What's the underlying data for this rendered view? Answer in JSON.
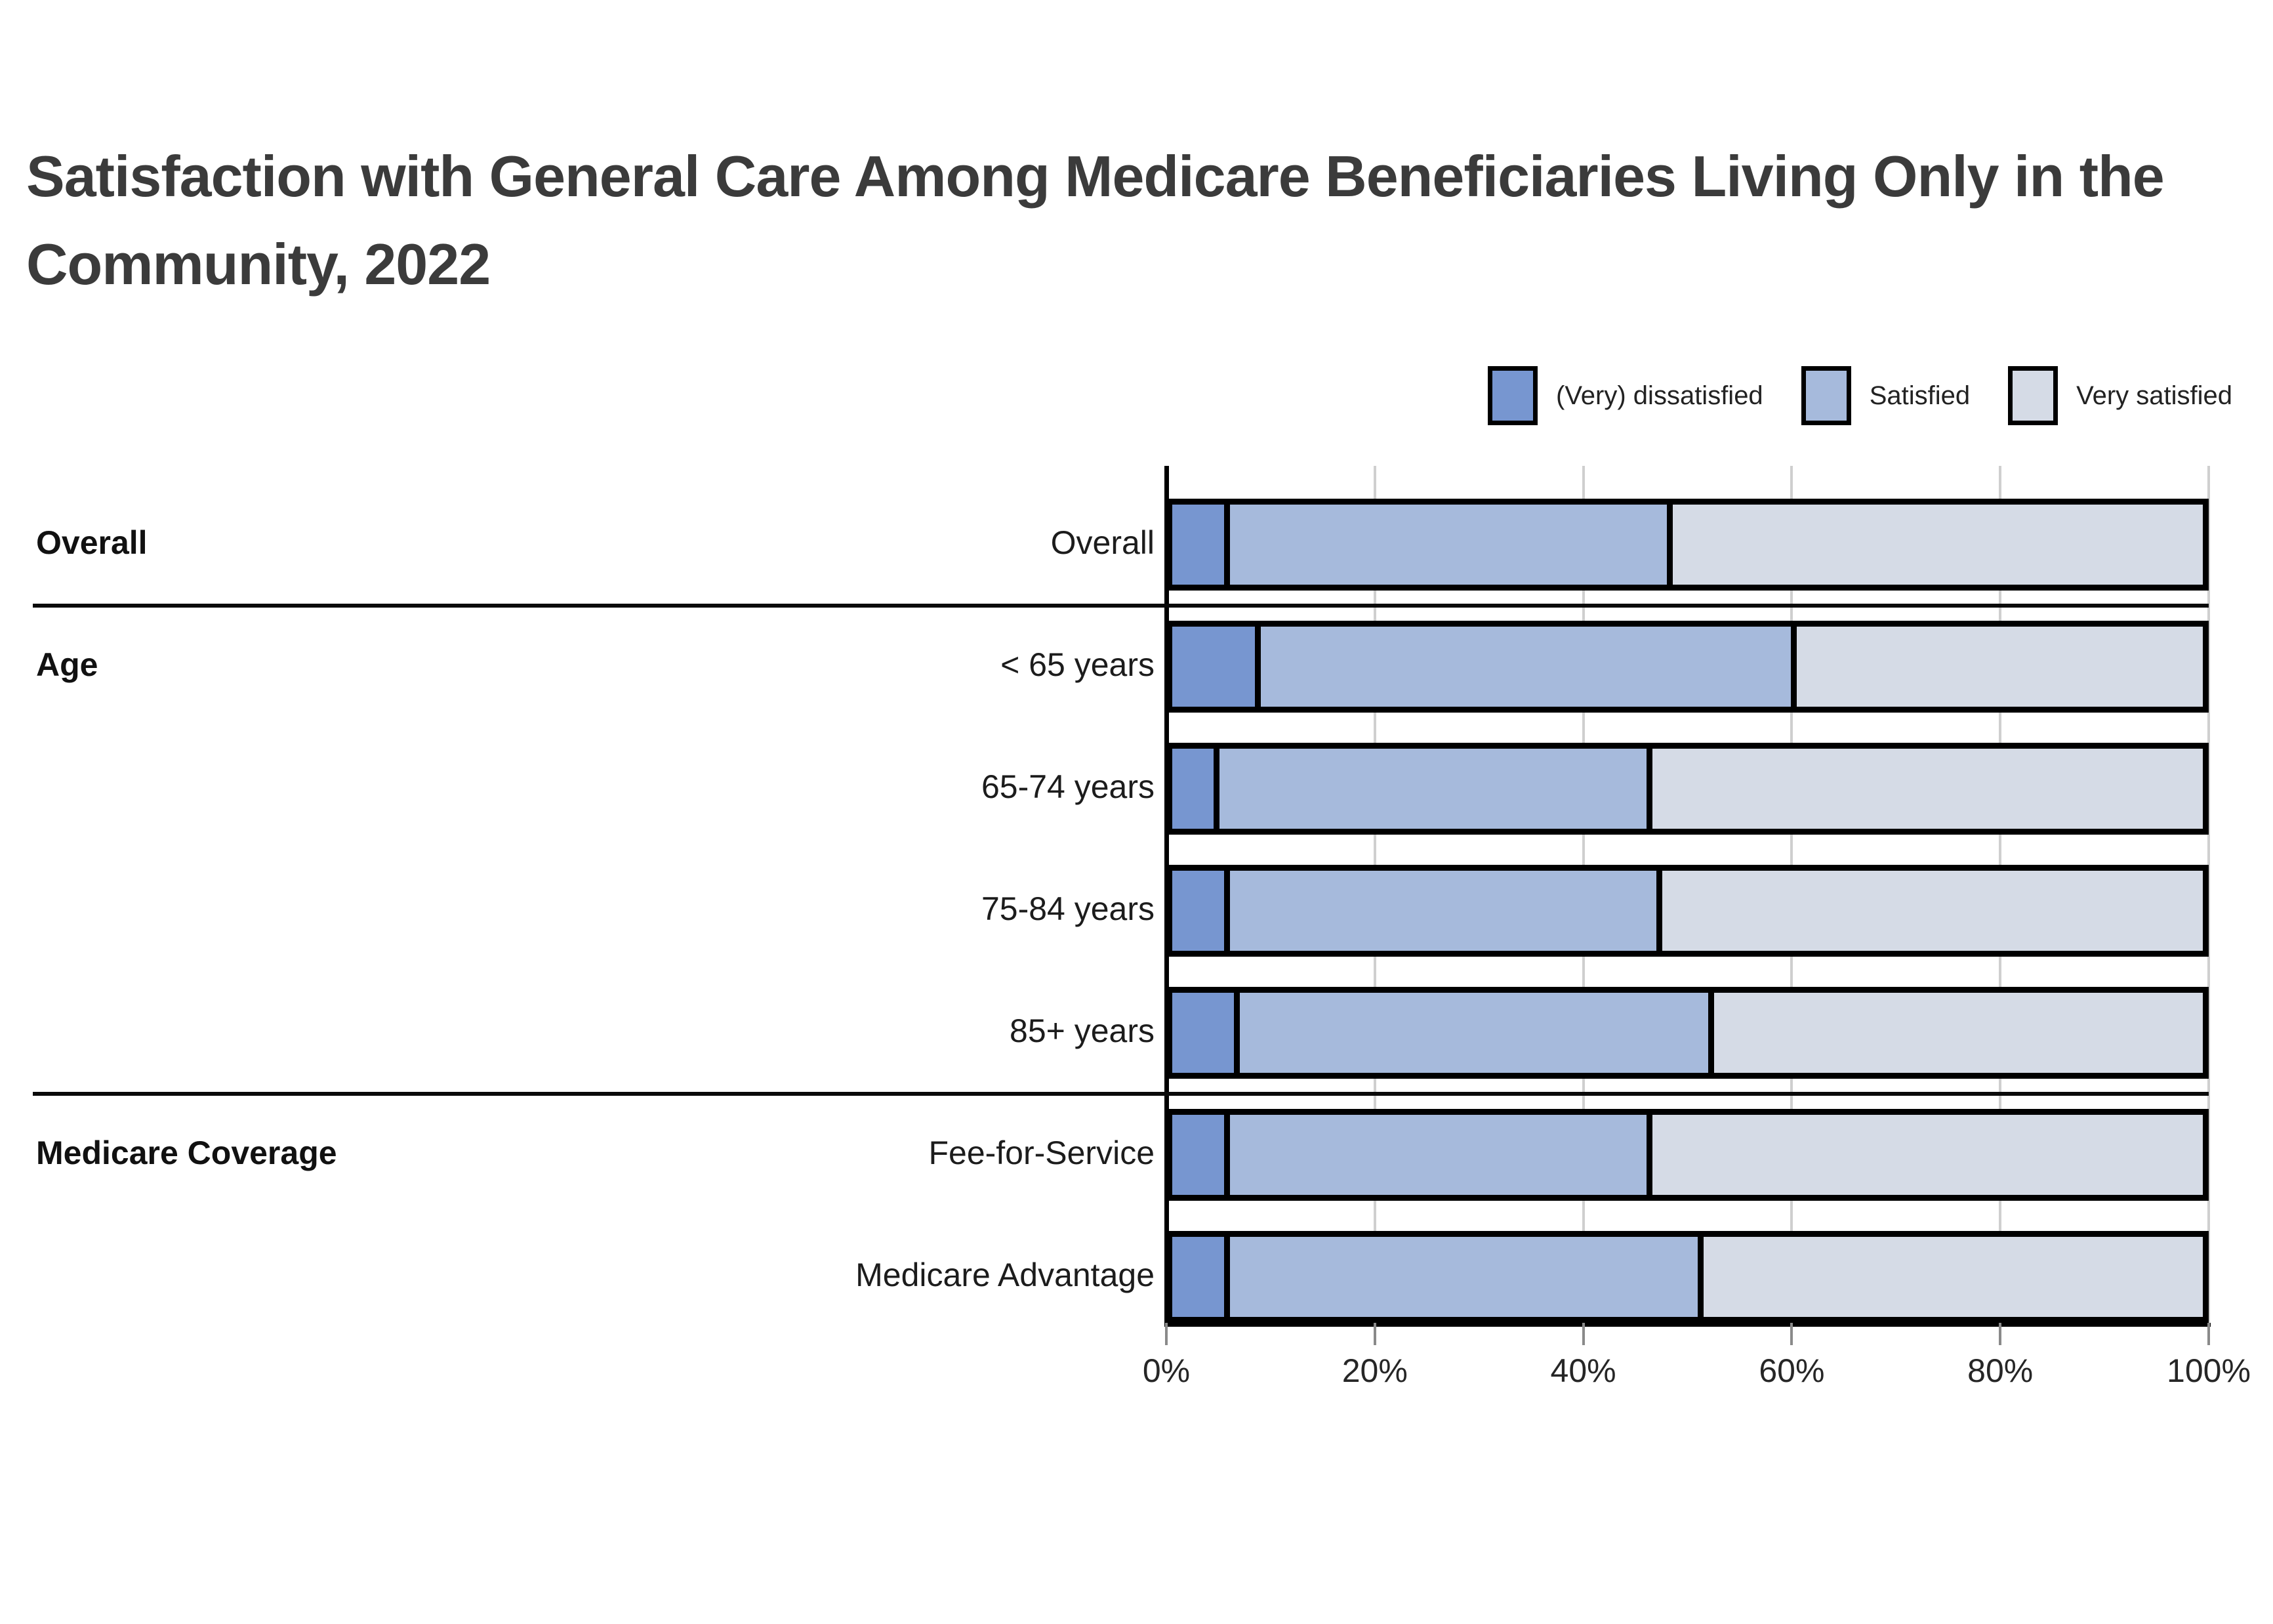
{
  "title_lines": [
    "Satisfaction with General Care Among Medicare Beneficiaries Living Only in the",
    "Community, 2022"
  ],
  "legend": {
    "items": [
      {
        "label": "(Very) dissatisfied",
        "color": "#7796D0"
      },
      {
        "label": "Satisfied",
        "color": "#A6BADC"
      },
      {
        "label": "Very satisfied",
        "color": "#D5DBE6"
      }
    ]
  },
  "groups": [
    {
      "label": "Overall"
    },
    {
      "label": "Age"
    },
    {
      "label": "Medicare Coverage"
    }
  ],
  "x_axis": {
    "tick_labels": [
      "0%",
      "20%",
      "40%",
      "60%",
      "80%",
      "100%"
    ]
  },
  "chart_data": {
    "type": "bar",
    "stacked": true,
    "orientation": "horizontal",
    "title": "Satisfaction with General Care Among Medicare Beneficiaries Living Only in the Community, 2022",
    "categories": [
      "Overall",
      "< 65 years",
      "65-74 years",
      "75-84 years",
      "85+ years",
      "Fee-for-Service",
      "Medicare Advantage"
    ],
    "category_groups": [
      "Overall",
      "Age",
      "Age",
      "Age",
      "Age",
      "Medicare Coverage",
      "Medicare Coverage"
    ],
    "series": [
      {
        "name": "(Very) dissatisfied",
        "color": "#7796D0",
        "values": [
          5,
          8,
          4,
          5,
          6,
          5,
          5
        ]
      },
      {
        "name": "Satisfied",
        "color": "#A6BADC",
        "values": [
          43,
          52,
          42,
          42,
          46,
          41,
          46
        ]
      },
      {
        "name": "Very satisfied",
        "color": "#D5DBE6",
        "values": [
          52,
          40,
          54,
          53,
          48,
          54,
          49
        ]
      }
    ],
    "xlabel": "",
    "ylabel": "",
    "xlim": [
      0,
      100
    ],
    "x_tick_labels": [
      "0%",
      "20%",
      "40%",
      "60%",
      "80%",
      "100%"
    ],
    "grid": true,
    "legend_position": "top-right"
  }
}
